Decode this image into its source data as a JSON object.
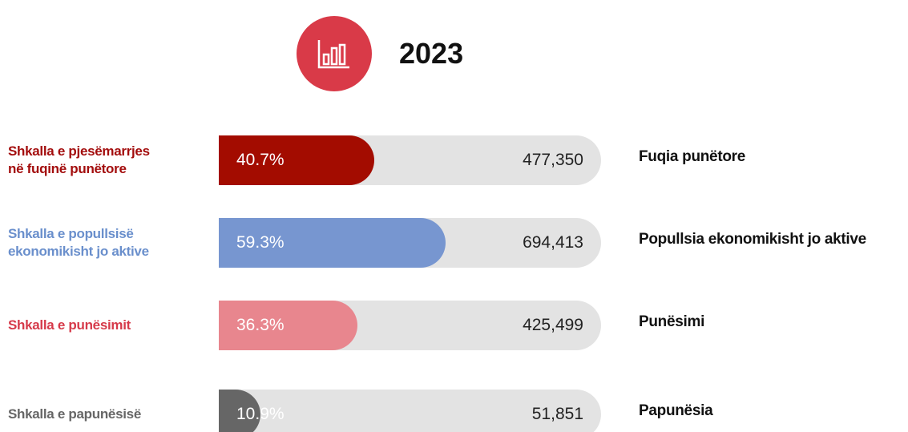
{
  "chart_data": {
    "type": "bar",
    "title": "2023",
    "categories": [
      "Shkalla e pjesëmarrjes\nnë fuqinë punëtore",
      "Shkalla e popullsisë\nekonomikisht jo aktive",
      "Shkalla e punësimit",
      "Shkalla e papunësisë"
    ],
    "values": [
      40.7,
      59.3,
      36.3,
      10.9
    ],
    "value_labels": [
      "40.7%",
      "59.3%",
      "36.3%",
      "10.9%"
    ],
    "colors": [
      "#a30c00",
      "#7796d0",
      "#e8868e",
      "#666666"
    ],
    "label_colors": [
      "#a30d0d",
      "#6a8fcc",
      "#d63a4a",
      "#666666"
    ],
    "counts": [
      477350,
      694413,
      425499,
      51851
    ],
    "count_labels": [
      "477,350",
      "694,413",
      "425,499",
      "51,851"
    ],
    "count_names": [
      "Fuqia punëtore",
      "Popullsia ekonomikisht jo aktive",
      "Punësimi",
      "Papunësia"
    ],
    "xlim": [
      0,
      100
    ]
  }
}
